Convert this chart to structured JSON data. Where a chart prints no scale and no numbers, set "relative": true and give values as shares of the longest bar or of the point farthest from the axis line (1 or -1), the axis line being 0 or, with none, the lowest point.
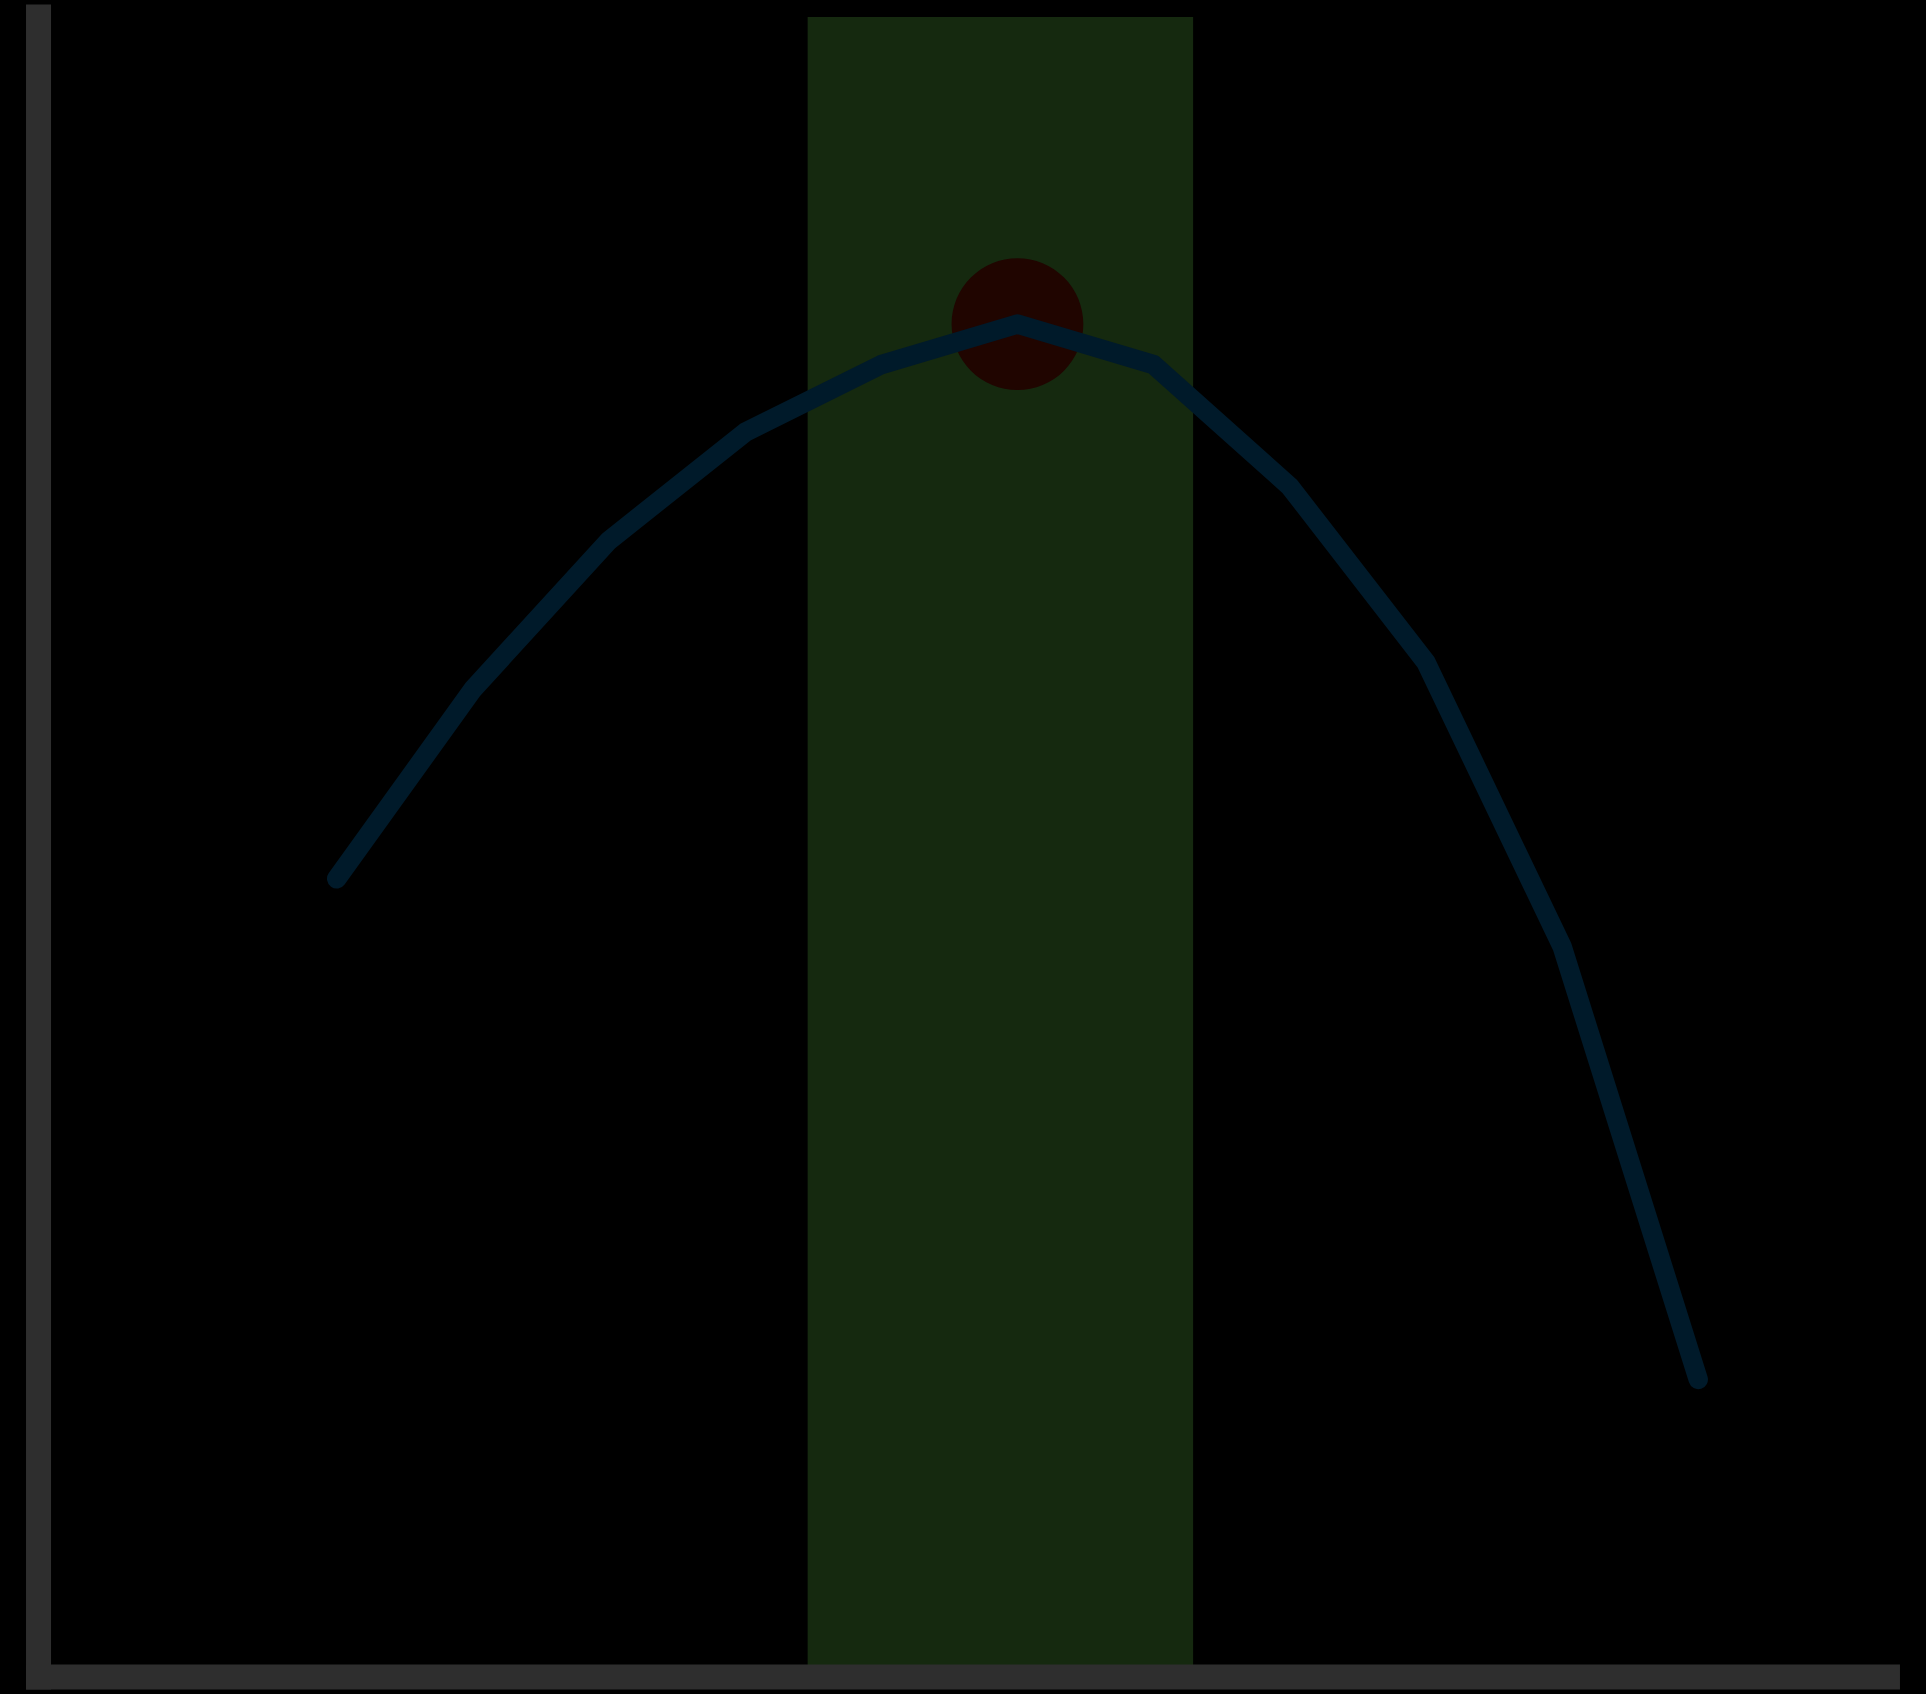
{
  "chart_data": {
    "type": "line",
    "relative": true,
    "categories": [
      null,
      null,
      null,
      null,
      null,
      null,
      null,
      null,
      null,
      null,
      null
    ],
    "series": [
      {
        "color": "#001a2a",
        "values": [
          0.59,
          0.73,
          0.84,
          0.92,
          0.97,
          1.0,
          0.97,
          0.88,
          0.75,
          0.54,
          0.22
        ]
      }
    ],
    "grid": false,
    "legend": false
  }
}
